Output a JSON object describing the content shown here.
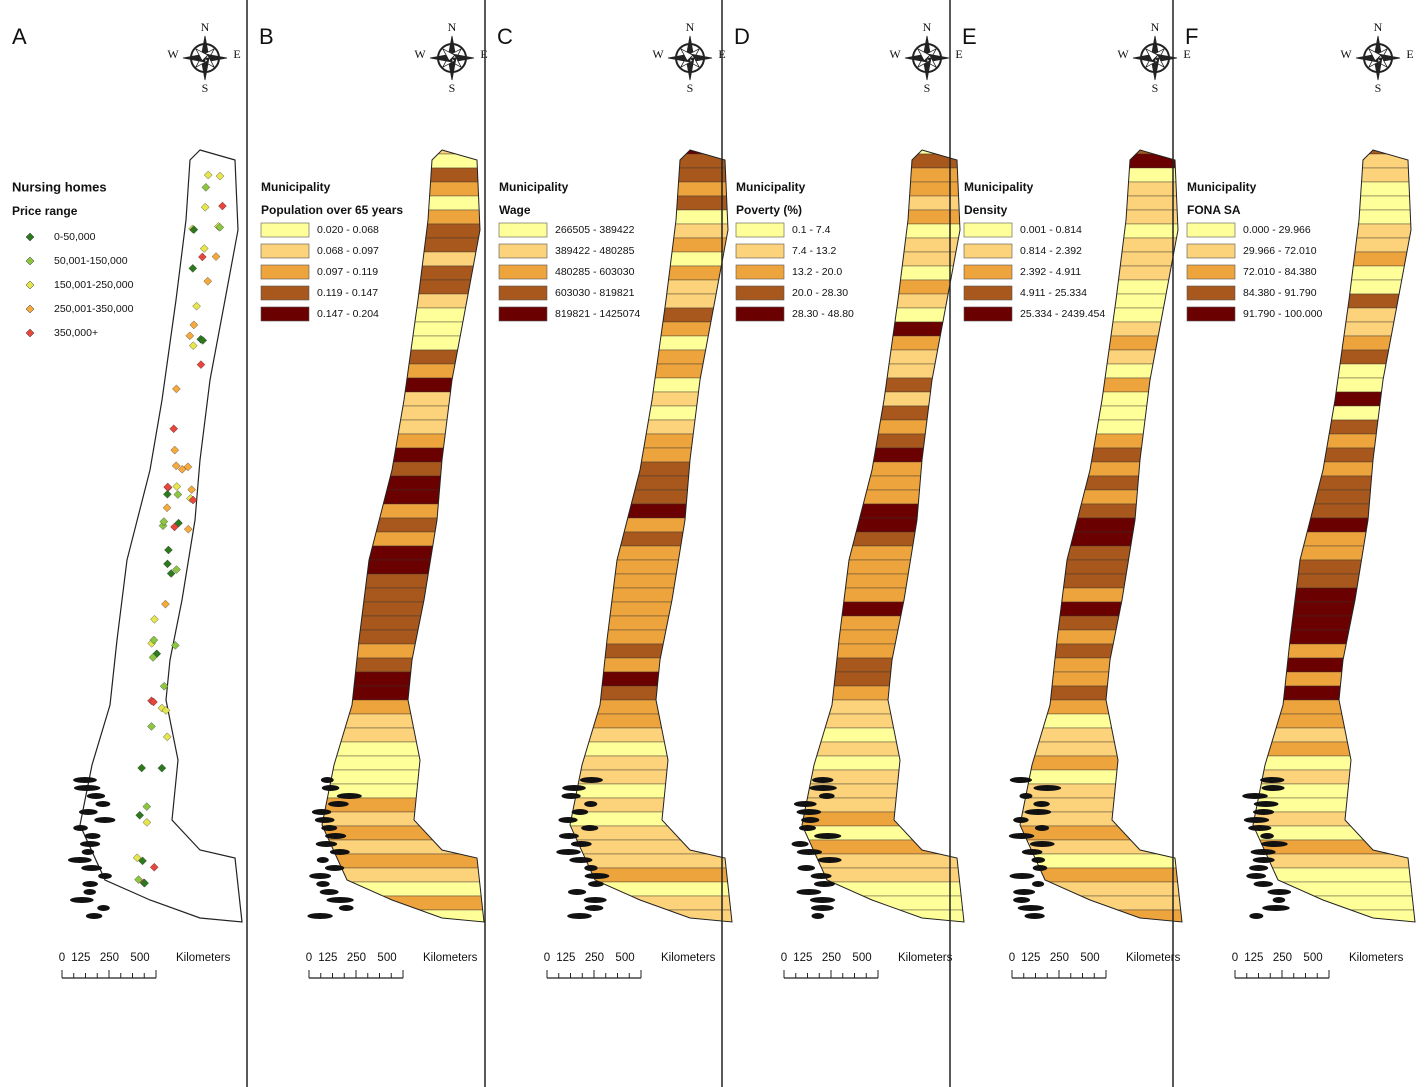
{
  "panels": [
    {
      "letter": "A",
      "legend": {
        "title": "Nursing homes",
        "subtitle": "Price range",
        "items": [
          {
            "label": "0-50,000",
            "color": "#2d7a1e"
          },
          {
            "label": "50,001-150,000",
            "color": "#8cc63f"
          },
          {
            "label": "150,001-250,000",
            "color": "#e6e64c"
          },
          {
            "label": "250,001-350,000",
            "color": "#f7a93b"
          },
          {
            "label": "350,000+",
            "color": "#e8453c"
          }
        ]
      }
    },
    {
      "letter": "B",
      "legend": {
        "title": "Municipality",
        "subtitle": "Population over 65 years",
        "items": [
          {
            "label": "0.020 - 0.068",
            "color": "#ffff9a"
          },
          {
            "label": "0.068 - 0.097",
            "color": "#fcd27a"
          },
          {
            "label": "0.097 - 0.119",
            "color": "#eea43c"
          },
          {
            "label": "0.119 - 0.147",
            "color": "#a8581c"
          },
          {
            "label": "0.147 - 0.204",
            "color": "#6b0000"
          }
        ]
      }
    },
    {
      "letter": "C",
      "legend": {
        "title": "Municipality",
        "subtitle": "Wage",
        "items": [
          {
            "label": "266505 - 389422",
            "color": "#ffff9a"
          },
          {
            "label": "389422 - 480285",
            "color": "#fcd27a"
          },
          {
            "label": "480285 - 603030",
            "color": "#eea43c"
          },
          {
            "label": "603030 - 819821",
            "color": "#a8581c"
          },
          {
            "label": "819821 - 1425074",
            "color": "#6b0000"
          }
        ]
      }
    },
    {
      "letter": "D",
      "legend": {
        "title": "Municipality",
        "subtitle": "Poverty (%)",
        "items": [
          {
            "label": "0.1 - 7.4",
            "color": "#ffff9a"
          },
          {
            "label": "7.4 - 13.2",
            "color": "#fcd27a"
          },
          {
            "label": "13.2 - 20.0",
            "color": "#eea43c"
          },
          {
            "label": "20.0 - 28.30",
            "color": "#a8581c"
          },
          {
            "label": "28.30 - 48.80",
            "color": "#6b0000"
          }
        ]
      }
    },
    {
      "letter": "E",
      "legend": {
        "title": "Municipality",
        "subtitle": "Density",
        "items": [
          {
            "label": "0.001 - 0.814",
            "color": "#ffff9a"
          },
          {
            "label": "0.814 - 2.392",
            "color": "#fcd27a"
          },
          {
            "label": "2.392 - 4.911",
            "color": "#eea43c"
          },
          {
            "label": "4.911 - 25.334",
            "color": "#a8581c"
          },
          {
            "label": "25.334 - 2439.454",
            "color": "#6b0000"
          }
        ]
      }
    },
    {
      "letter": "F",
      "legend": {
        "title": "Municipality",
        "subtitle": "FONA SA",
        "items": [
          {
            "label": "0.000 - 29.966",
            "color": "#ffff9a"
          },
          {
            "label": "29.966 - 72.010",
            "color": "#fcd27a"
          },
          {
            "label": "72.010 - 84.380",
            "color": "#eea43c"
          },
          {
            "label": "84.380 - 91.790",
            "color": "#a8581c"
          },
          {
            "label": "91.790 - 100.000",
            "color": "#6b0000"
          }
        ]
      }
    }
  ],
  "compass": {
    "north": "N",
    "west": "W",
    "east": "E",
    "south": "S"
  },
  "scale_bar": {
    "ticks": [
      "0",
      "125",
      "250",
      "500"
    ],
    "unit": "Kilometers"
  }
}
